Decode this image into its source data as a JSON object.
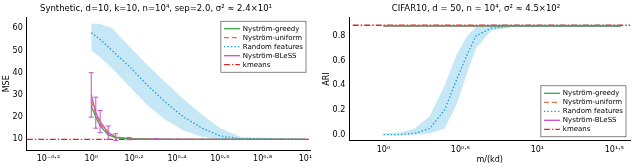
{
  "chart_data": [
    {
      "type": "line",
      "title": "Synthetic, d=10, k=10, n=10⁴, sep=2.0, σ² ≈ 2.4×10¹",
      "y_label": "MSE",
      "log": "x",
      "grid": false,
      "legend": "upper right",
      "xlim": [
        0.5,
        10.5
      ],
      "xticks": [
        {
          "value": 0.631,
          "label": "10⁻⁰·²"
        },
        {
          "value": 1,
          "label": "10⁰"
        },
        {
          "value": 1.585,
          "label": "10⁰·²"
        },
        {
          "value": 2.512,
          "label": "10⁰·⁴"
        },
        {
          "value": 3.981,
          "label": "10⁰·⁶"
        },
        {
          "value": 6.31,
          "label": "10⁰·⁸"
        },
        {
          "value": 10,
          "label": "10¹"
        }
      ],
      "ylim": [
        5,
        65
      ],
      "yticks": [
        10,
        20,
        30,
        40,
        50,
        60
      ],
      "series": [
        {
          "name": "Nyström-greedy",
          "color": "#3da44d",
          "line_style": "solid",
          "x": [
            1.0,
            1.05,
            1.1,
            1.2,
            1.3,
            1.5,
            2,
            3,
            5,
            10
          ],
          "values": [
            25,
            20,
            16,
            12,
            10.8,
            10.2,
            10,
            10,
            10,
            10
          ]
        },
        {
          "name": "Nyström-uniform",
          "color": "#e26f46",
          "line_style": "dashed",
          "x": [
            1.0,
            1.05,
            1.1,
            1.2,
            1.3,
            1.5,
            2,
            3,
            5,
            10
          ],
          "values": [
            27,
            22,
            17,
            13,
            11,
            10.3,
            10,
            10,
            10,
            10
          ]
        },
        {
          "name": "Random features",
          "color": "#1a9edb",
          "line_style": "dotted",
          "x": [
            1,
            1.1,
            1.25,
            1.5,
            1.8,
            2.2,
            2.7,
            3.3,
            4,
            5,
            10
          ],
          "values": [
            58,
            55,
            50,
            43,
            35,
            27,
            20,
            15,
            11.5,
            10.3,
            10
          ],
          "band_low": [
            50,
            47,
            42,
            34,
            26,
            19,
            14,
            11,
            10,
            10,
            10
          ],
          "band_high": [
            62,
            62,
            60,
            52,
            44,
            36,
            28,
            21,
            15,
            11,
            10
          ]
        },
        {
          "name": "Nyström-BLeSS",
          "color": "#c94fc8",
          "line_style": "solid",
          "x": [
            1.0,
            1.05,
            1.1,
            1.2,
            1.3,
            1.5,
            2,
            3,
            5,
            10
          ],
          "values": [
            30,
            22,
            18,
            13,
            11,
            10.3,
            10.1,
            10,
            10,
            10
          ],
          "error": [
            10,
            7,
            5,
            3,
            1.5,
            0.5,
            0.2,
            0,
            0,
            0
          ]
        },
        {
          "name": "kmeans",
          "color": "#d62728",
          "line_style": "dashdot",
          "x": [
            0.5,
            10.5
          ],
          "values": [
            10,
            10
          ]
        }
      ]
    },
    {
      "type": "line",
      "title": "CIFAR10, d = 50, n = 10⁴, σ² ≈ 4.5×10²",
      "x_label": "m/(kd)",
      "y_label": "ARI",
      "log": "x",
      "grid": false,
      "legend": "lower right",
      "xlim": [
        0.631,
        40
      ],
      "xticks": [
        {
          "value": 1,
          "label": "10⁰"
        },
        {
          "value": 3.162,
          "label": "10⁰·⁵"
        },
        {
          "value": 10,
          "label": "10¹"
        },
        {
          "value": 31.62,
          "label": "10¹·⁵"
        }
      ],
      "ylim": [
        -0.05,
        0.95
      ],
      "yticks": [
        {
          "value": 0,
          "label": "0.0"
        },
        0.2,
        0.4,
        0.6,
        0.8
      ],
      "series": [
        {
          "name": "Nyström-greedy",
          "color": "#3da44d",
          "line_style": "solid",
          "x": [
            1,
            2,
            5,
            10,
            20,
            35
          ],
          "values": [
            0.88,
            0.88,
            0.88,
            0.88,
            0.88,
            0.88
          ]
        },
        {
          "name": "Nyström-uniform",
          "color": "#e26f46",
          "line_style": "dashed",
          "x": [
            1,
            2,
            5,
            10,
            20,
            35
          ],
          "values": [
            0.88,
            0.88,
            0.88,
            0.88,
            0.88,
            0.88
          ]
        },
        {
          "name": "Random features",
          "color": "#1a9edb",
          "line_style": "dotted",
          "x": [
            1,
            1.3,
            1.6,
            2,
            2.5,
            3,
            3.5,
            4,
            5,
            7,
            10,
            20,
            35
          ],
          "values": [
            0,
            0,
            0.01,
            0.05,
            0.2,
            0.45,
            0.65,
            0.8,
            0.86,
            0.88,
            0.88,
            0.88,
            0.88
          ],
          "band_low": [
            0,
            0,
            0,
            0.01,
            0.05,
            0.25,
            0.5,
            0.7,
            0.84,
            0.87,
            0.87,
            0.87,
            0.87
          ],
          "band_high": [
            0.01,
            0.02,
            0.05,
            0.15,
            0.4,
            0.65,
            0.8,
            0.87,
            0.89,
            0.89,
            0.89,
            0.89,
            0.89
          ]
        },
        {
          "name": "Nyström-BLeSS",
          "color": "#c94fc8",
          "line_style": "solid",
          "x": [
            1,
            2,
            5,
            10,
            20,
            35
          ],
          "values": [
            0.88,
            0.88,
            0.88,
            0.88,
            0.88,
            0.88
          ]
        },
        {
          "name": "kmeans",
          "color": "#d62728",
          "line_style": "dashdot",
          "x": [
            0.631,
            40
          ],
          "values": [
            0.885,
            0.885
          ]
        }
      ]
    }
  ]
}
